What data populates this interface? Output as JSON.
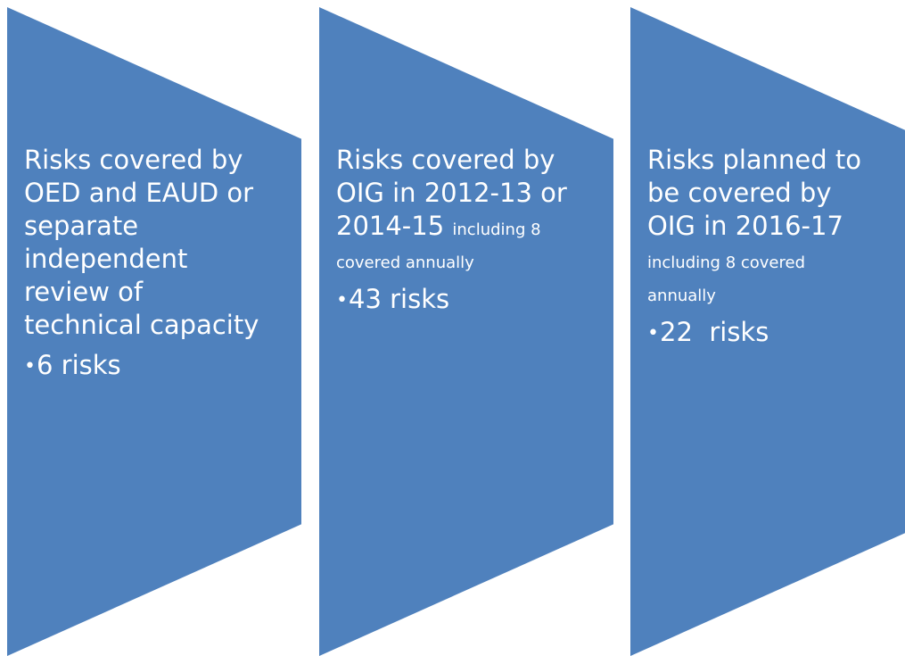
{
  "diagram": {
    "fill_color": "#4f81bd",
    "text_color": "#ffffff",
    "steps": [
      {
        "heading": "Risks covered by\nOED and EAUD or\nseparate\nindependent\nreview of\ntechnical capacity",
        "note": "",
        "bullet": "6 risks"
      },
      {
        "heading": "Risks covered by\nOIG in 2012-13 or\n2014-15 ",
        "note": "including 8\ncovered annually",
        "bullet": "43 risks"
      },
      {
        "heading": "Risks  planned to\nbe covered by\nOIG in 2016-17\n",
        "note": "including 8 covered\nannually",
        "bullet": "22  risks"
      }
    ]
  }
}
